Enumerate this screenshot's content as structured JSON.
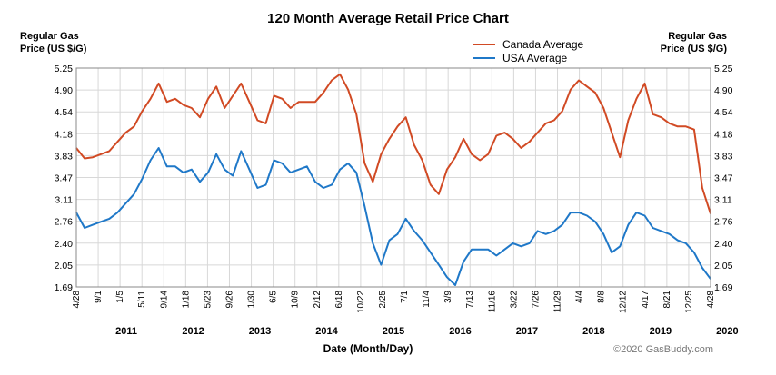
{
  "chart_data": {
    "type": "line",
    "title": "120 Month Average Retail Price Chart",
    "ylabel_left": [
      "Regular Gas",
      "Price (US $/G)"
    ],
    "ylabel_right": [
      "Regular Gas",
      "Price (US $/G)"
    ],
    "xlabel": "Date (Month/Day)",
    "credit": "©2020 GasBuddy.com",
    "ylim": [
      1.69,
      5.25
    ],
    "yticks": [
      "5.25",
      "4.90",
      "4.54",
      "4.18",
      "3.83",
      "3.47",
      "3.11",
      "2.76",
      "2.40",
      "2.05",
      "1.69"
    ],
    "xticks": [
      "4/28",
      "9/1",
      "1/5",
      "5/11",
      "9/14",
      "1/18",
      "5/23",
      "9/26",
      "1/30",
      "6/5",
      "10/9",
      "2/12",
      "6/18",
      "10/22",
      "2/25",
      "7/1",
      "11/4",
      "3/9",
      "7/13",
      "11/16",
      "3/22",
      "7/26",
      "11/29",
      "4/4",
      "8/8",
      "12/12",
      "4/17",
      "8/21",
      "12/25",
      "4/28"
    ],
    "years": [
      "2011",
      "2012",
      "2013",
      "2014",
      "2015",
      "2016",
      "2017",
      "2018",
      "2019",
      "2020"
    ],
    "grid": true,
    "legend_position": "top-right",
    "series": [
      {
        "name": "Canada Average",
        "color": "#d14a24",
        "values": [
          3.95,
          3.78,
          3.8,
          3.85,
          3.9,
          4.05,
          4.2,
          4.3,
          4.55,
          4.75,
          5.0,
          4.7,
          4.75,
          4.65,
          4.6,
          4.45,
          4.75,
          4.95,
          4.6,
          4.8,
          5.0,
          4.7,
          4.4,
          4.35,
          4.8,
          4.75,
          4.6,
          4.7,
          4.7,
          4.7,
          4.85,
          5.05,
          5.15,
          4.9,
          4.5,
          3.7,
          3.4,
          3.85,
          4.1,
          4.3,
          4.45,
          4.0,
          3.75,
          3.35,
          3.2,
          3.6,
          3.8,
          4.1,
          3.85,
          3.75,
          3.85,
          4.15,
          4.2,
          4.1,
          3.95,
          4.05,
          4.2,
          4.35,
          4.4,
          4.55,
          4.9,
          5.05,
          4.95,
          4.85,
          4.6,
          4.2,
          3.8,
          4.4,
          4.75,
          5.0,
          4.5,
          4.45,
          4.35,
          4.3,
          4.3,
          4.25,
          3.3,
          2.88
        ]
      },
      {
        "name": "USA Average",
        "color": "#1f78c8",
        "values": [
          2.9,
          2.65,
          2.7,
          2.75,
          2.8,
          2.9,
          3.05,
          3.2,
          3.45,
          3.75,
          3.95,
          3.65,
          3.65,
          3.55,
          3.6,
          3.4,
          3.55,
          3.85,
          3.6,
          3.5,
          3.9,
          3.6,
          3.3,
          3.35,
          3.75,
          3.7,
          3.55,
          3.6,
          3.65,
          3.4,
          3.3,
          3.35,
          3.6,
          3.7,
          3.55,
          3.0,
          2.4,
          2.05,
          2.45,
          2.55,
          2.8,
          2.6,
          2.45,
          2.25,
          2.05,
          1.85,
          1.72,
          2.1,
          2.3,
          2.3,
          2.3,
          2.2,
          2.3,
          2.4,
          2.35,
          2.4,
          2.6,
          2.55,
          2.6,
          2.7,
          2.9,
          2.9,
          2.85,
          2.75,
          2.55,
          2.25,
          2.35,
          2.7,
          2.9,
          2.85,
          2.65,
          2.6,
          2.55,
          2.45,
          2.4,
          2.25,
          2.0,
          1.82
        ]
      }
    ]
  }
}
